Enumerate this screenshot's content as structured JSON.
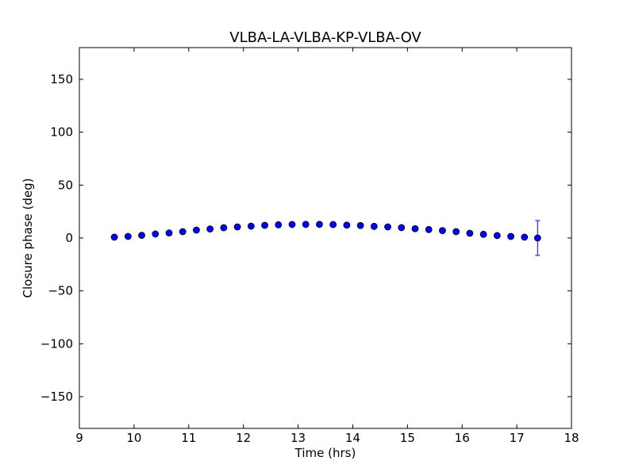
{
  "chart_data": {
    "type": "scatter",
    "title": "VLBA-LA-VLBA-KP-VLBA-OV",
    "xlabel": "Time (hrs)",
    "ylabel": "Closure phase (deg)",
    "xlim": [
      9,
      18
    ],
    "ylim": [
      -180,
      180
    ],
    "xticks": [
      {
        "value": 9,
        "label": "9"
      },
      {
        "value": 10,
        "label": "10"
      },
      {
        "value": 11,
        "label": "11"
      },
      {
        "value": 12,
        "label": "12"
      },
      {
        "value": 13,
        "label": "13"
      },
      {
        "value": 14,
        "label": "14"
      },
      {
        "value": 15,
        "label": "15"
      },
      {
        "value": 16,
        "label": "16"
      },
      {
        "value": 17,
        "label": "17"
      },
      {
        "value": 18,
        "label": "18"
      }
    ],
    "yticks": [
      {
        "value": 150,
        "label": "150"
      },
      {
        "value": 100,
        "label": "100"
      },
      {
        "value": 50,
        "label": "50"
      },
      {
        "value": 0,
        "label": "0"
      },
      {
        "value": -50,
        "label": "−50"
      },
      {
        "value": -100,
        "label": "−100"
      },
      {
        "value": -150,
        "label": "−150"
      }
    ],
    "grid": false,
    "marker_color": "#0000ff",
    "series": [
      {
        "points": [
          {
            "x": 9.64,
            "y": 0.8,
            "err": 2
          },
          {
            "x": 9.89,
            "y": 1.5,
            "err": 1
          },
          {
            "x": 10.14,
            "y": 2.5,
            "err": 1
          },
          {
            "x": 10.39,
            "y": 3.8,
            "err": 1
          },
          {
            "x": 10.64,
            "y": 4.8,
            "err": 1
          },
          {
            "x": 10.89,
            "y": 6.0,
            "err": 1
          },
          {
            "x": 11.14,
            "y": 7.5,
            "err": 1
          },
          {
            "x": 11.39,
            "y": 8.5,
            "err": 1
          },
          {
            "x": 11.64,
            "y": 9.7,
            "err": 1
          },
          {
            "x": 11.89,
            "y": 10.5,
            "err": 1
          },
          {
            "x": 12.14,
            "y": 11.2,
            "err": 1
          },
          {
            "x": 12.39,
            "y": 12.0,
            "err": 1
          },
          {
            "x": 12.64,
            "y": 12.5,
            "err": 1
          },
          {
            "x": 12.89,
            "y": 12.8,
            "err": 1
          },
          {
            "x": 13.14,
            "y": 12.9,
            "err": 1
          },
          {
            "x": 13.39,
            "y": 12.9,
            "err": 1
          },
          {
            "x": 13.64,
            "y": 12.7,
            "err": 1
          },
          {
            "x": 13.89,
            "y": 12.2,
            "err": 1
          },
          {
            "x": 14.14,
            "y": 11.8,
            "err": 1
          },
          {
            "x": 14.39,
            "y": 11.0,
            "err": 1
          },
          {
            "x": 14.64,
            "y": 10.5,
            "err": 1
          },
          {
            "x": 14.89,
            "y": 9.8,
            "err": 1
          },
          {
            "x": 15.14,
            "y": 8.8,
            "err": 1
          },
          {
            "x": 15.39,
            "y": 8.0,
            "err": 1
          },
          {
            "x": 15.64,
            "y": 7.0,
            "err": 1
          },
          {
            "x": 15.89,
            "y": 6.0,
            "err": 1
          },
          {
            "x": 16.14,
            "y": 4.5,
            "err": 1
          },
          {
            "x": 16.39,
            "y": 3.5,
            "err": 1
          },
          {
            "x": 16.64,
            "y": 2.3,
            "err": 1
          },
          {
            "x": 16.89,
            "y": 1.5,
            "err": 1
          },
          {
            "x": 17.14,
            "y": 0.8,
            "err": 1
          },
          {
            "x": 17.38,
            "y": 0.0,
            "err": 16.5
          }
        ]
      }
    ]
  }
}
